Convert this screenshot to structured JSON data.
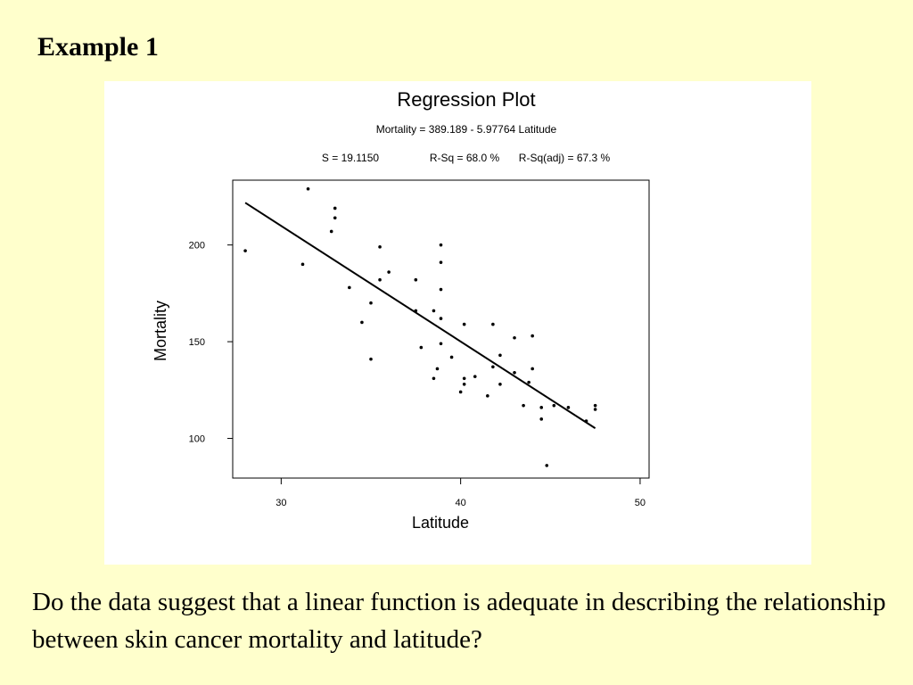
{
  "slide": {
    "title": "Example 1",
    "question": "Do the data suggest that a linear function is adequate in describing the relationship between skin cancer mortality and latitude?"
  },
  "chart_data": {
    "type": "scatter",
    "title": "Regression Plot",
    "equation": "Mortality = 389.189 - 5.97764 Latitude",
    "stats": {
      "s": "S = 19.1150",
      "r_sq": "R-Sq = 68.0 %",
      "r_sq_adj": "R-Sq(adj) = 67.3 %"
    },
    "xlabel": "Latitude",
    "ylabel": "Mortality",
    "xlim": [
      27.3,
      50.5
    ],
    "ylim": [
      79.5,
      233.5
    ],
    "xticks": [
      30,
      40,
      50
    ],
    "yticks": [
      100,
      150,
      200
    ],
    "grid": false,
    "fit_line": {
      "intercept": 389.189,
      "slope": -5.97764,
      "x_range": [
        28,
        47.5
      ]
    },
    "points": [
      {
        "x": 28.0,
        "y": 197
      },
      {
        "x": 31.2,
        "y": 190
      },
      {
        "x": 31.5,
        "y": 229
      },
      {
        "x": 32.8,
        "y": 207
      },
      {
        "x": 33.0,
        "y": 219
      },
      {
        "x": 33.0,
        "y": 214
      },
      {
        "x": 33.8,
        "y": 178
      },
      {
        "x": 34.5,
        "y": 160
      },
      {
        "x": 35.0,
        "y": 170
      },
      {
        "x": 35.0,
        "y": 141
      },
      {
        "x": 35.5,
        "y": 199
      },
      {
        "x": 35.5,
        "y": 182
      },
      {
        "x": 36.0,
        "y": 186
      },
      {
        "x": 37.5,
        "y": 182
      },
      {
        "x": 37.5,
        "y": 166
      },
      {
        "x": 37.8,
        "y": 147
      },
      {
        "x": 38.5,
        "y": 166
      },
      {
        "x": 38.5,
        "y": 131
      },
      {
        "x": 38.7,
        "y": 136
      },
      {
        "x": 38.9,
        "y": 200
      },
      {
        "x": 38.9,
        "y": 191
      },
      {
        "x": 38.9,
        "y": 177
      },
      {
        "x": 38.9,
        "y": 162
      },
      {
        "x": 38.9,
        "y": 149
      },
      {
        "x": 39.5,
        "y": 142
      },
      {
        "x": 40.0,
        "y": 124
      },
      {
        "x": 40.2,
        "y": 159
      },
      {
        "x": 40.2,
        "y": 131
      },
      {
        "x": 40.2,
        "y": 128
      },
      {
        "x": 40.8,
        "y": 132
      },
      {
        "x": 41.5,
        "y": 122
      },
      {
        "x": 41.8,
        "y": 159
      },
      {
        "x": 41.8,
        "y": 137
      },
      {
        "x": 42.2,
        "y": 143
      },
      {
        "x": 42.2,
        "y": 128
      },
      {
        "x": 43.0,
        "y": 152
      },
      {
        "x": 43.0,
        "y": 134
      },
      {
        "x": 43.5,
        "y": 117
      },
      {
        "x": 43.8,
        "y": 129
      },
      {
        "x": 44.0,
        "y": 153
      },
      {
        "x": 44.0,
        "y": 136
      },
      {
        "x": 44.5,
        "y": 116
      },
      {
        "x": 44.5,
        "y": 110
      },
      {
        "x": 44.8,
        "y": 86
      },
      {
        "x": 45.2,
        "y": 117
      },
      {
        "x": 46.0,
        "y": 116
      },
      {
        "x": 47.0,
        "y": 109
      },
      {
        "x": 47.5,
        "y": 117
      },
      {
        "x": 47.5,
        "y": 115
      }
    ]
  }
}
